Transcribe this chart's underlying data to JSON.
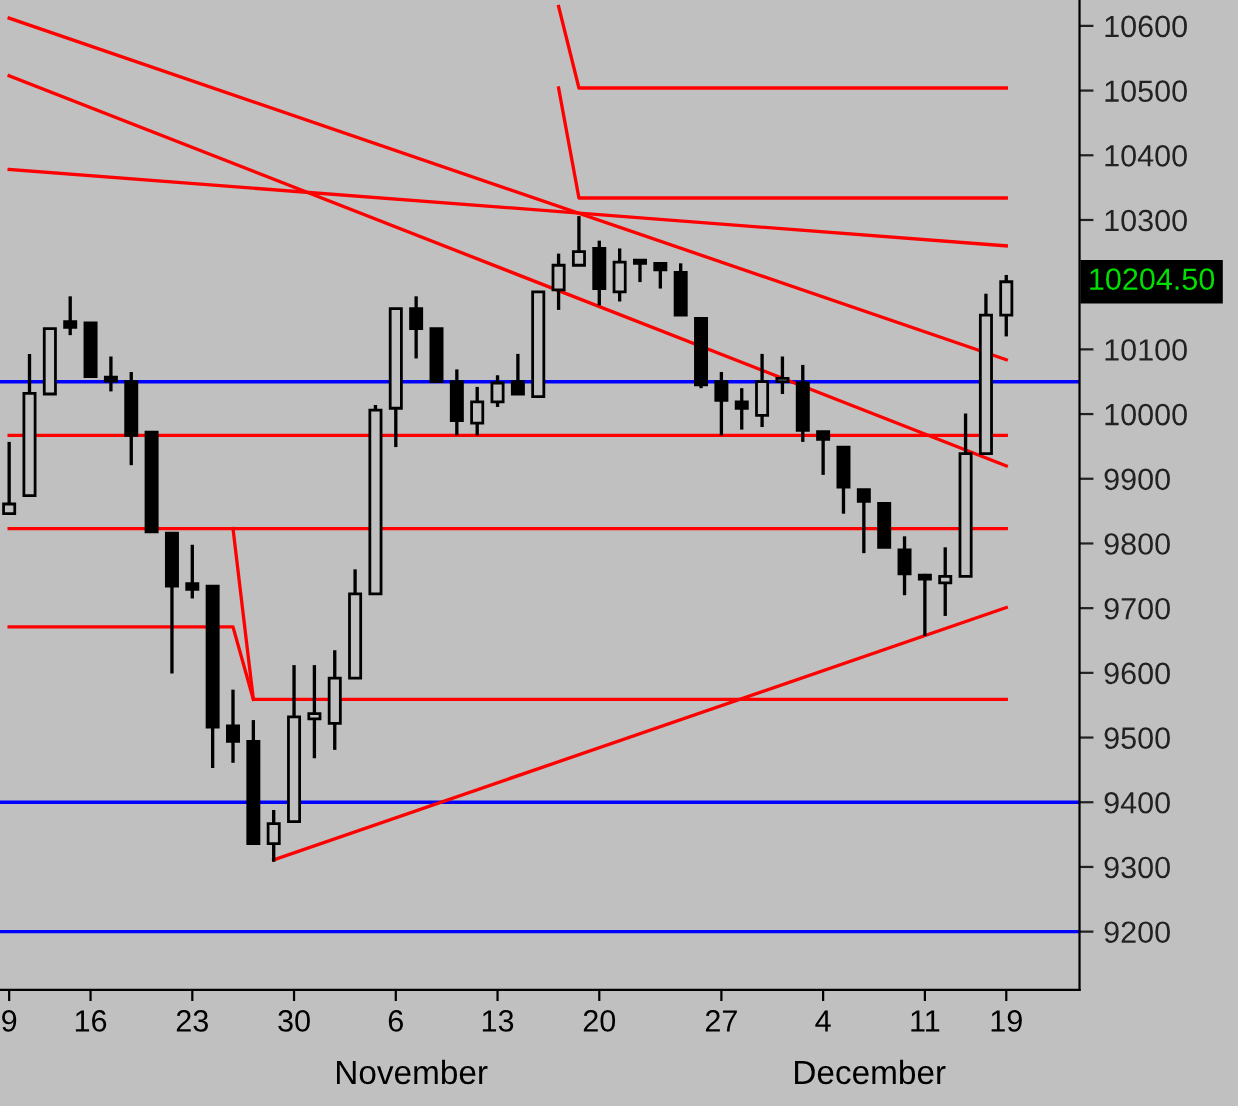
{
  "chart_data": {
    "type": "candlestick",
    "categories": [
      "9",
      null,
      null,
      null,
      "16",
      null,
      null,
      null,
      null,
      "23",
      null,
      null,
      null,
      null,
      "30",
      null,
      null,
      null,
      null,
      "6",
      null,
      null,
      null,
      null,
      "13",
      null,
      null,
      null,
      null,
      "20",
      null,
      null,
      null,
      null,
      null,
      "27",
      null,
      null,
      null,
      null,
      "4",
      null,
      null,
      null,
      null,
      "11",
      null,
      null,
      null,
      "19"
    ],
    "ohlc": [
      [
        9846,
        9957,
        9846,
        9861
      ],
      [
        9874,
        10093,
        9874,
        10032
      ],
      [
        10031,
        10132,
        10031,
        10132
      ],
      [
        10143,
        10182,
        10122,
        10134
      ],
      [
        10141,
        10141,
        10056,
        10058
      ],
      [
        10057,
        10089,
        10035,
        10051
      ],
      [
        10050,
        10065,
        9921,
        9967
      ],
      [
        9972,
        9972,
        9818,
        9818
      ],
      [
        9816,
        9816,
        9599,
        9734
      ],
      [
        9738,
        9798,
        9715,
        9729
      ],
      [
        9734,
        9734,
        9453,
        9516
      ],
      [
        9518,
        9574,
        9461,
        9494
      ],
      [
        9494,
        9527,
        9336,
        9336
      ],
      [
        9336,
        9388,
        9308,
        9367
      ],
      [
        9370,
        9612,
        9370,
        9532
      ],
      [
        9529,
        9612,
        9468,
        9537
      ],
      [
        9522,
        9635,
        9481,
        9592
      ],
      [
        9592,
        9760,
        9592,
        9722
      ],
      [
        9722,
        10014,
        9722,
        10006
      ],
      [
        10009,
        10163,
        9949,
        10163
      ],
      [
        10163,
        10182,
        10086,
        10132
      ],
      [
        10132,
        10132,
        10050,
        10050
      ],
      [
        10050,
        10069,
        9967,
        9990
      ],
      [
        9986,
        10042,
        9967,
        10019
      ],
      [
        10019,
        10060,
        10011,
        10048
      ],
      [
        10050,
        10093,
        10031,
        10031
      ],
      [
        10027,
        10189,
        10027,
        10189
      ],
      [
        10192,
        10248,
        10161,
        10230
      ],
      [
        10230,
        10306,
        10230,
        10251
      ],
      [
        10256,
        10268,
        10168,
        10194
      ],
      [
        10189,
        10256,
        10174,
        10235
      ],
      [
        10238,
        10238,
        10204,
        10233
      ],
      [
        10233,
        10233,
        10194,
        10223
      ],
      [
        10219,
        10233,
        10153,
        10153
      ],
      [
        10148,
        10148,
        10040,
        10045
      ],
      [
        10050,
        10065,
        9967,
        10021
      ],
      [
        10019,
        10040,
        9976,
        10009
      ],
      [
        9998,
        10093,
        9980,
        10050
      ],
      [
        10050,
        10089,
        10031,
        10055
      ],
      [
        10048,
        10076,
        9957,
        9975
      ],
      [
        9973,
        9973,
        9906,
        9961
      ],
      [
        9949,
        9949,
        9846,
        9887
      ],
      [
        9883,
        9883,
        9785,
        9865
      ],
      [
        9862,
        9862,
        9794,
        9794
      ],
      [
        9790,
        9811,
        9720,
        9753
      ],
      [
        9751,
        9753,
        9657,
        9745
      ],
      [
        9739,
        9794,
        9688,
        9749
      ],
      [
        9749,
        10001,
        9749,
        9939
      ],
      [
        9939,
        10186,
        9939,
        10153
      ],
      [
        10153,
        10215,
        10120,
        10204.5
      ]
    ],
    "series": [
      {
        "type": "line",
        "color": "#ff0000",
        "values": [
          10612,
          null,
          null,
          null,
          null,
          null,
          null,
          null,
          null,
          null,
          null,
          null,
          null,
          null,
          null,
          null,
          null,
          null,
          null,
          null,
          null,
          null,
          null,
          null,
          null,
          null,
          null,
          null,
          null,
          null,
          null,
          null,
          null,
          null,
          null,
          null,
          null,
          null,
          null,
          null,
          null,
          null,
          null,
          null,
          null,
          null,
          null,
          null,
          null,
          10084
        ]
      },
      {
        "type": "line",
        "color": "#ff0000",
        "values": [
          10378,
          null,
          null,
          null,
          null,
          null,
          null,
          null,
          null,
          null,
          null,
          null,
          null,
          null,
          null,
          null,
          null,
          null,
          null,
          null,
          null,
          null,
          null,
          null,
          null,
          null,
          null,
          null,
          null,
          null,
          null,
          null,
          null,
          null,
          null,
          null,
          null,
          null,
          null,
          null,
          null,
          null,
          null,
          null,
          null,
          null,
          null,
          null,
          null,
          10260
        ]
      },
      {
        "type": "line",
        "color": "#ff0000",
        "values": [
          10523,
          null,
          null,
          null,
          null,
          null,
          null,
          null,
          null,
          null,
          null,
          null,
          null,
          null,
          null,
          null,
          null,
          null,
          null,
          null,
          null,
          null,
          null,
          null,
          null,
          null,
          null,
          null,
          null,
          null,
          null,
          null,
          null,
          null,
          null,
          null,
          null,
          null,
          null,
          null,
          null,
          null,
          null,
          null,
          null,
          null,
          null,
          null,
          null,
          9920
        ]
      },
      {
        "type": "line",
        "color": "#ff0000",
        "values": [
          null,
          null,
          null,
          null,
          null,
          null,
          null,
          null,
          null,
          null,
          null,
          null,
          null,
          9311,
          null,
          null,
          null,
          null,
          null,
          null,
          null,
          null,
          null,
          null,
          null,
          null,
          null,
          null,
          null,
          null,
          null,
          null,
          null,
          null,
          null,
          null,
          null,
          null,
          null,
          null,
          null,
          null,
          null,
          null,
          null,
          null,
          null,
          null,
          null,
          9701
        ]
      },
      {
        "type": "line",
        "color": "#ff0000",
        "values": [
          null,
          null,
          null,
          null,
          null,
          null,
          null,
          null,
          null,
          null,
          null,
          null,
          null,
          null,
          null,
          null,
          null,
          null,
          null,
          null,
          null,
          null,
          null,
          null,
          null,
          null,
          null,
          10630,
          10504,
          null,
          null,
          null,
          null,
          null,
          null,
          null,
          null,
          null,
          null,
          null,
          null,
          null,
          null,
          null,
          null,
          null,
          null,
          null,
          null,
          10504
        ]
      },
      {
        "type": "line",
        "color": "#ff0000",
        "values": [
          null,
          null,
          null,
          null,
          null,
          null,
          null,
          null,
          null,
          null,
          null,
          null,
          null,
          null,
          null,
          null,
          null,
          null,
          null,
          null,
          null,
          null,
          null,
          null,
          null,
          null,
          null,
          10504,
          10334,
          null,
          null,
          null,
          null,
          null,
          null,
          null,
          null,
          null,
          null,
          null,
          null,
          null,
          null,
          null,
          null,
          null,
          null,
          null,
          null,
          10334
        ]
      },
      {
        "type": "line",
        "color": "#ff0000",
        "values": [
          9967,
          null,
          null,
          null,
          null,
          null,
          null,
          null,
          null,
          null,
          null,
          null,
          null,
          null,
          null,
          null,
          null,
          null,
          null,
          null,
          null,
          null,
          null,
          null,
          null,
          null,
          null,
          null,
          null,
          null,
          null,
          null,
          null,
          null,
          null,
          null,
          null,
          null,
          null,
          null,
          null,
          null,
          null,
          null,
          null,
          null,
          null,
          null,
          null,
          9967
        ]
      },
      {
        "type": "line",
        "color": "#ff0000",
        "values": [
          9823,
          null,
          null,
          null,
          null,
          null,
          null,
          null,
          null,
          null,
          null,
          null,
          null,
          null,
          null,
          null,
          null,
          null,
          null,
          null,
          null,
          null,
          null,
          null,
          null,
          null,
          null,
          null,
          null,
          null,
          null,
          null,
          null,
          null,
          null,
          null,
          null,
          null,
          null,
          null,
          null,
          null,
          null,
          null,
          null,
          null,
          null,
          null,
          null,
          9823
        ]
      },
      {
        "type": "line",
        "color": "#ff0000",
        "values": [
          null,
          null,
          null,
          null,
          null,
          null,
          null,
          null,
          null,
          null,
          null,
          9823,
          9559,
          null,
          null,
          null,
          null,
          null,
          null,
          null,
          null,
          null,
          null,
          null,
          null,
          null,
          null,
          null,
          null,
          null,
          null,
          null,
          null,
          null,
          null,
          null,
          null,
          null,
          null,
          null,
          null,
          null,
          null,
          null,
          null,
          null,
          null,
          null,
          null,
          9559
        ]
      },
      {
        "type": "line",
        "color": "#ff0000",
        "values": [
          9671,
          null,
          null,
          null,
          null,
          null,
          null,
          null,
          null,
          null,
          null,
          9671,
          9559,
          null,
          null,
          null,
          null,
          null,
          null,
          null,
          null,
          null,
          null,
          null,
          null,
          null,
          null,
          null,
          null,
          null,
          null,
          null,
          null,
          null,
          null,
          null,
          null,
          null,
          null,
          null,
          null,
          null,
          null,
          null,
          null,
          null,
          null,
          null,
          null,
          null
        ]
      }
    ],
    "ref_lines": [
      {
        "axis": "y",
        "value": 10050,
        "color": "#0000ff"
      },
      {
        "axis": "y",
        "value": 9400,
        "color": "#0000ff"
      },
      {
        "axis": "y",
        "value": 9200,
        "color": "#0000ff"
      }
    ],
    "ylim": [
      9110,
      10640
    ],
    "yticks": [
      9200,
      9300,
      9400,
      9500,
      9600,
      9700,
      9800,
      9900,
      10000,
      10100,
      10300,
      10400,
      10500,
      10600
    ],
    "annotations": [
      "10204.50",
      "November",
      "December"
    ],
    "grid": false,
    "legend": false
  }
}
